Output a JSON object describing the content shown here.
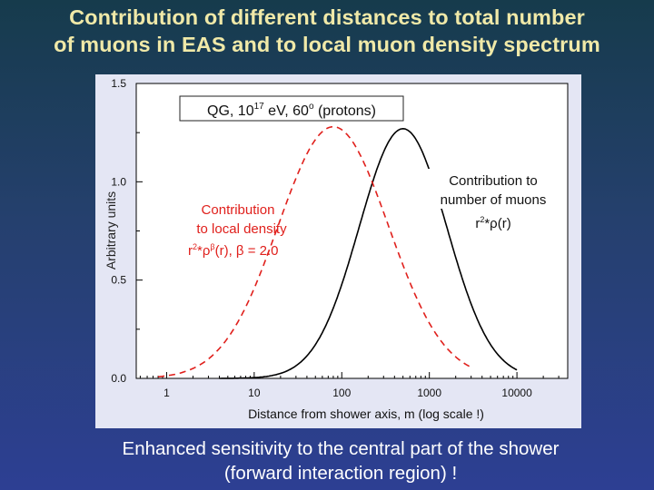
{
  "slide": {
    "title_line1": "Contribution of different distances to total number",
    "title_line2": "of muons in EAS and to local muon density spectrum",
    "caption_line1": "Enhanced sensitivity to the central part of the shower",
    "caption_line2": "(forward interaction region) !"
  },
  "colors": {
    "title": "#f0e9a8",
    "background_top": "#163b4c",
    "background_bottom": "#2d3f93",
    "panel": "#e4e6f4",
    "number_curve": "#000000",
    "density_curve": "#e0201c"
  },
  "chart_data": {
    "type": "line",
    "x_scale": "log",
    "xlabel": "Distance from shower axis, m (log scale !)",
    "ylabel": "Arbitrary units",
    "xlim": [
      0.45,
      38000
    ],
    "ylim": [
      0,
      1.5
    ],
    "x_ticks": [
      1,
      10,
      100,
      1000,
      10000
    ],
    "x_tick_labels": [
      "1",
      "10",
      "100",
      "1000",
      "10000"
    ],
    "y_ticks": [
      0,
      0.5,
      1.0,
      1.5
    ],
    "y_tick_labels": [
      "0.0",
      "0.5",
      "1.0",
      "1.5"
    ],
    "grid": false,
    "header_box": {
      "prefix": "QG, 10",
      "sup": "17",
      "middle": " eV, 60",
      "sup2": "o",
      "suffix": " (protons)"
    },
    "series": [
      {
        "id": "number",
        "style": "solid",
        "color": "#000000",
        "label_lines": [
          "Contribution to",
          "number of muons"
        ],
        "label_formula": {
          "prefix": "r",
          "sup": "2",
          "suffix": "*ρ(r)"
        },
        "peak_x": 500,
        "peak_y": 1.27,
        "log_sigma": 0.5,
        "x_start": 4,
        "x_end": 10000
      },
      {
        "id": "density",
        "style": "dashed",
        "color": "#e0201c",
        "label_lines": [
          "Contribution",
          "to local density"
        ],
        "label_formula": {
          "prefix": "r",
          "sup": "2",
          "mid": "*ρ",
          "sup2": "β",
          "suffix": "(r), β = 2.0"
        },
        "peak_x": 80,
        "peak_y": 1.28,
        "log_sigma": 0.63,
        "x_start": 0.8,
        "x_end": 3000
      }
    ]
  }
}
